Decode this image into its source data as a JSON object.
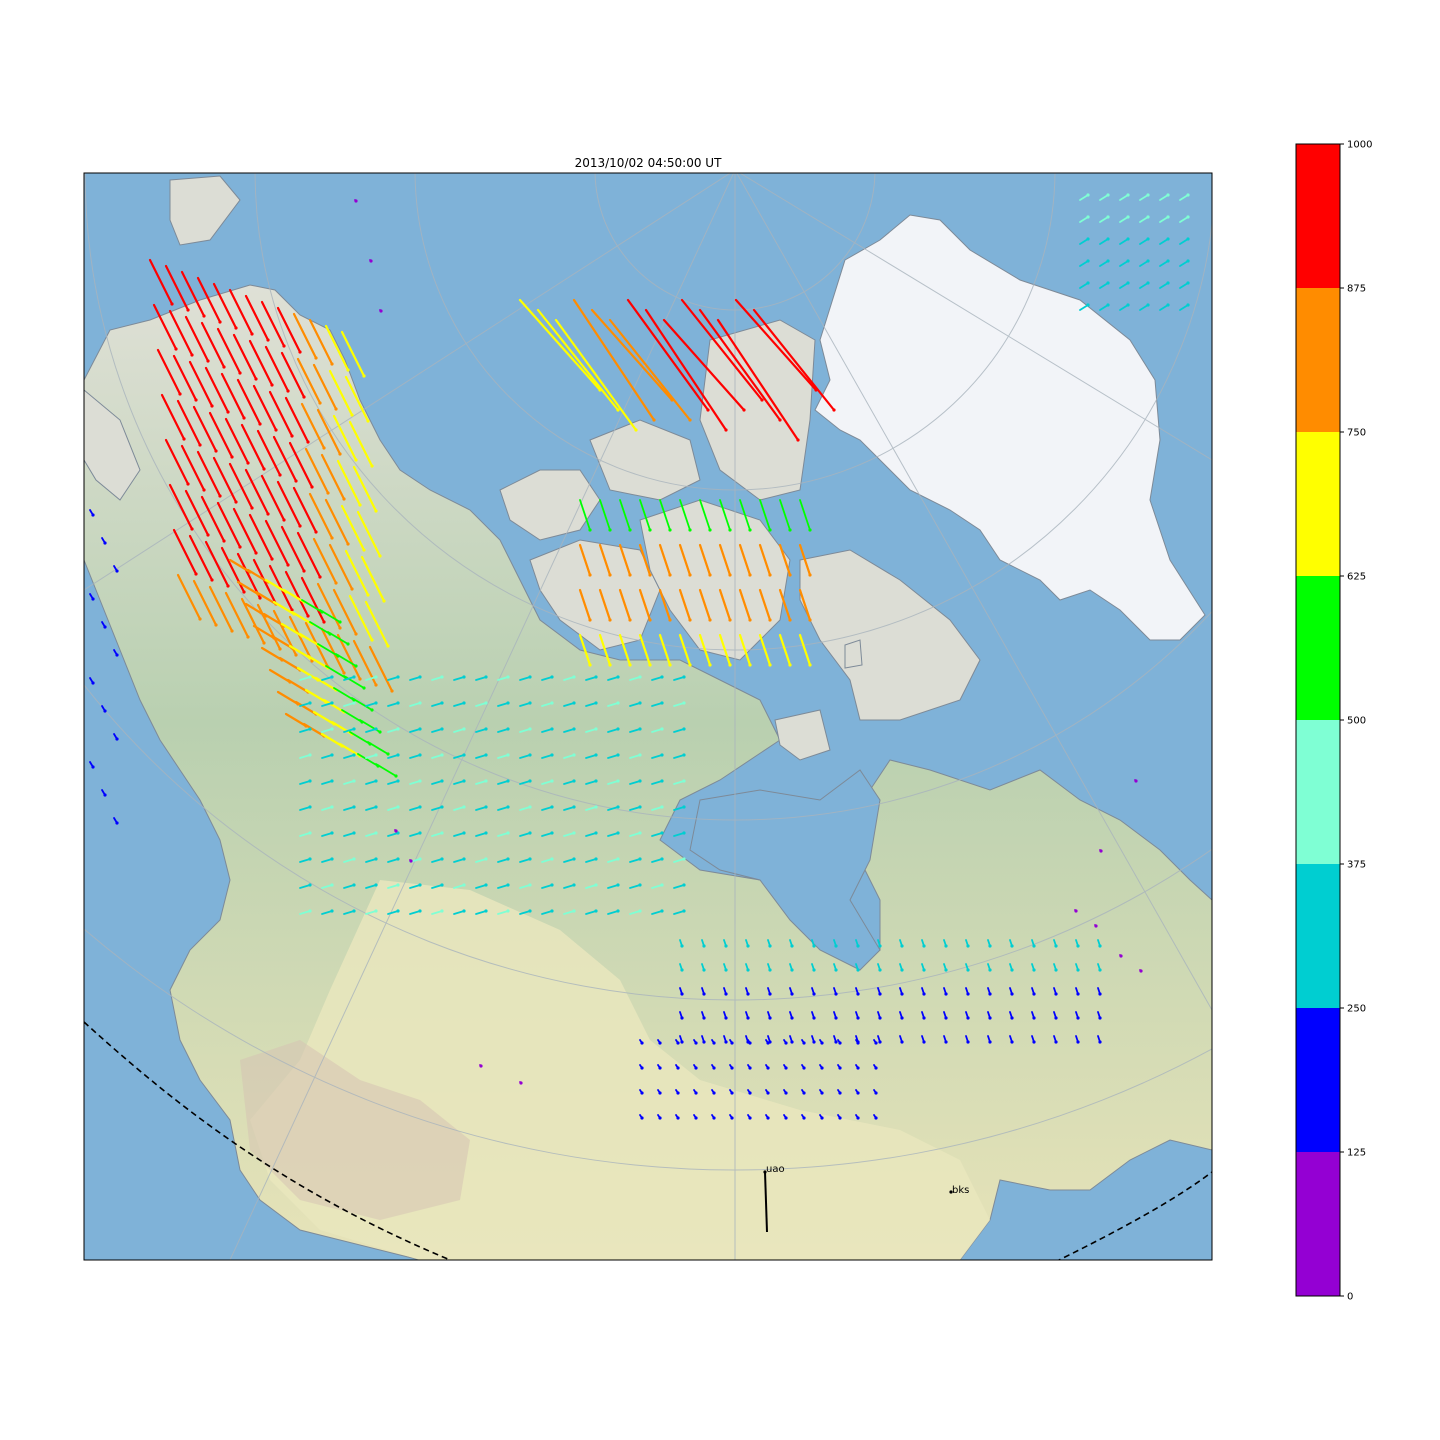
{
  "title": "2013/10/02 04:50:00 UT",
  "colorbar": {
    "ticks": [
      "0",
      "125",
      "250",
      "375",
      "500",
      "625",
      "750",
      "875",
      "1000"
    ],
    "colors": [
      "#9400d3",
      "#0000ff",
      "#00ced1",
      "#7fffd4",
      "#00ff00",
      "#ffff00",
      "#ff8c00",
      "#ff0000"
    ]
  },
  "stations": [
    {
      "name": "uao"
    },
    {
      "name": "bks"
    }
  ],
  "map_colors": {
    "ocean": "#7fb2d8",
    "land": "#d9dcc8",
    "vegetation": "#a9c8a4",
    "plains": "#e8e4bc",
    "ice": "#f2f4f8",
    "graticule": "#a9b4bd"
  }
}
